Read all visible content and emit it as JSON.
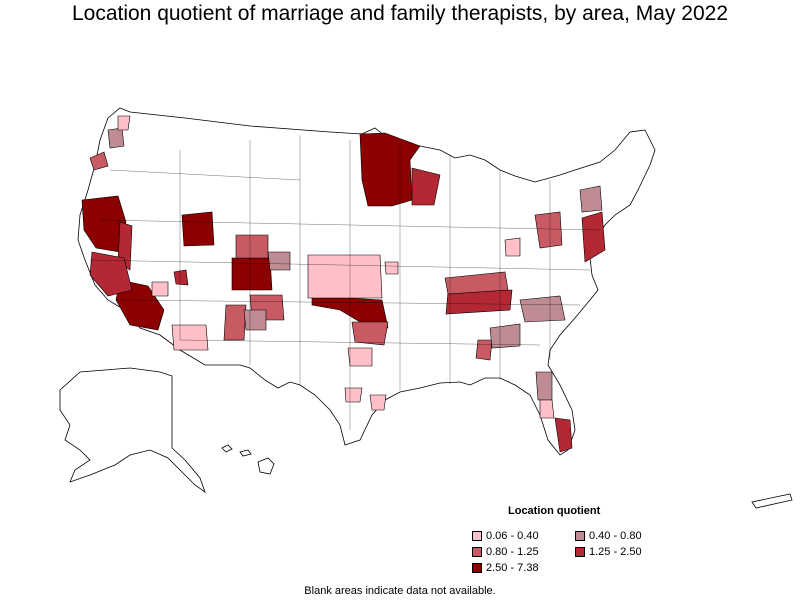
{
  "title": "Location quotient of marriage and family therapists, by area, May 2022",
  "legend": {
    "title": "Location quotient",
    "items": [
      {
        "label": "0.06 - 0.40",
        "color": "#ffc0c8"
      },
      {
        "label": "0.40 - 0.80",
        "color": "#c08c94"
      },
      {
        "label": "0.80 - 1.25",
        "color": "#c85a64"
      },
      {
        "label": "1.25 - 2.50",
        "color": "#b42834"
      },
      {
        "label": "2.50 - 7.38",
        "color": "#8c0000"
      }
    ]
  },
  "footnote": "Blank areas indicate data not available."
}
